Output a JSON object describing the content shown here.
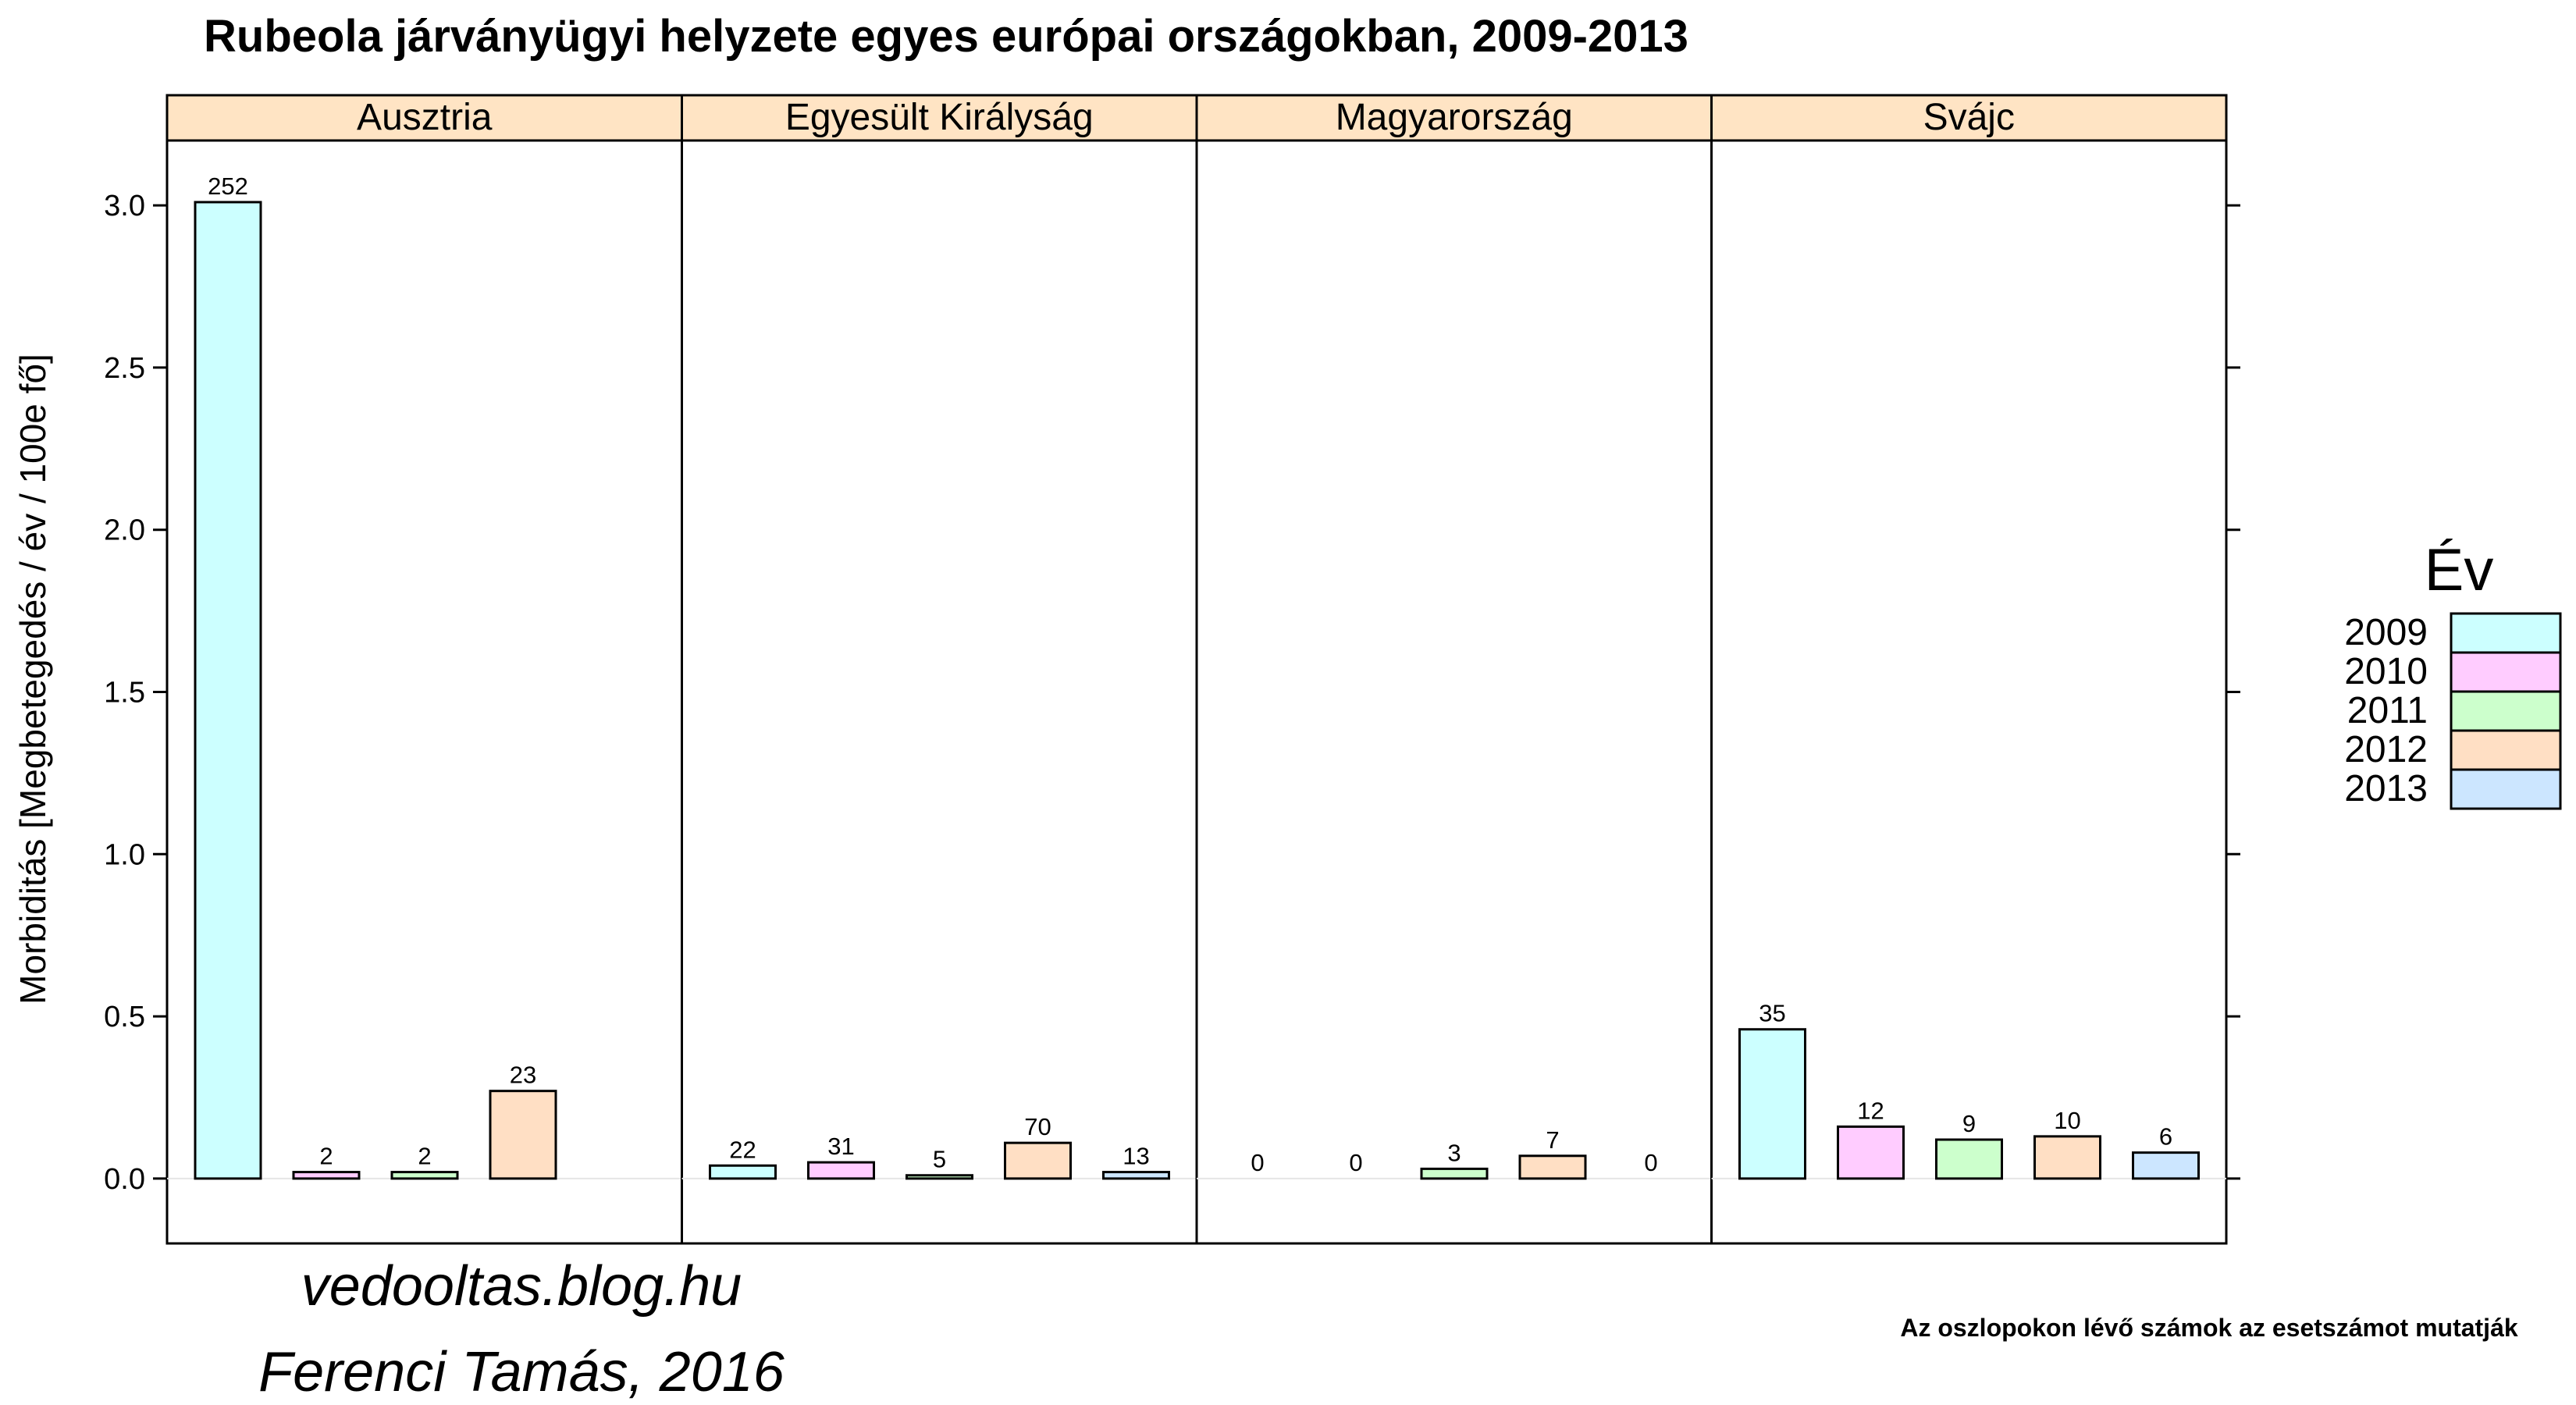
{
  "chart_data": {
    "type": "bar",
    "title": "Rubeola járványügyi helyzete egyes európai országokban, 2009-2013",
    "ylabel": "Morbiditás [Megbetegedés / év / 100e fő]",
    "xlabel": "",
    "ylim": [
      -0.2,
      3.2
    ],
    "yticks": [
      0.0,
      0.5,
      1.0,
      1.5,
      2.0,
      2.5,
      3.0
    ],
    "ytick_labels": [
      "0.0",
      "0.5",
      "1.0",
      "1.5",
      "2.0",
      "2.5",
      "3.0"
    ],
    "legend": {
      "title": "Év",
      "placement": "right",
      "entries": [
        "2009",
        "2010",
        "2011",
        "2012",
        "2013"
      ]
    },
    "colors": {
      "2009": "#ccffff",
      "2010": "#ffccff",
      "2011": "#ccffcc",
      "2012": "#ffdfc4",
      "2013": "#cce6ff",
      "strip": "#ffe4c4"
    },
    "panels": [
      {
        "country": "Ausztria",
        "values": [
          3.01,
          0.02,
          0.02,
          0.27,
          0.0
        ],
        "cases": [
          "252",
          "2",
          "2",
          "23",
          ""
        ]
      },
      {
        "country": "Egyesült Királyság",
        "values": [
          0.04,
          0.05,
          0.01,
          0.11,
          0.02
        ],
        "cases": [
          "22",
          "31",
          "5",
          "70",
          "13"
        ]
      },
      {
        "country": "Magyarország",
        "values": [
          0.0,
          0.0,
          0.03,
          0.07,
          0.0
        ],
        "cases": [
          "0",
          "0",
          "3",
          "7",
          "0"
        ]
      },
      {
        "country": "Svájc",
        "values": [
          0.46,
          0.16,
          0.12,
          0.13,
          0.08
        ],
        "cases": [
          "35",
          "12",
          "9",
          "10",
          "6"
        ]
      }
    ],
    "footnote": "Az oszlopokon lévő számok az esetszámot mutatják",
    "credits": [
      "vedooltas.blog.hu",
      "Ferenci Tamás, 2016"
    ]
  }
}
